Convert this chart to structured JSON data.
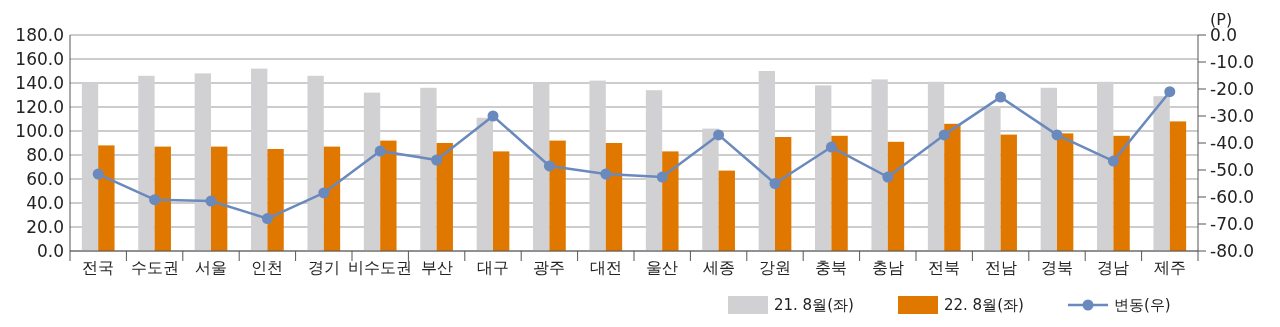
{
  "chart_data": {
    "type": "bar",
    "y2label": "(P)",
    "categories": [
      "전국",
      "수도권",
      "서울",
      "인천",
      "경기",
      "비수도권",
      "부산",
      "대구",
      "광주",
      "대전",
      "울산",
      "세종",
      "강원",
      "충북",
      "충남",
      "전북",
      "전남",
      "경북",
      "경남",
      "제주"
    ],
    "series": [
      {
        "name": "21. 8월(좌)",
        "color": "#d1d1d3",
        "values": [
          140,
          146,
          148,
          152,
          146,
          132,
          136,
          111,
          140,
          142,
          134,
          102,
          150,
          138,
          143,
          141,
          120,
          136,
          141,
          129
        ]
      },
      {
        "name": "22. 8월(좌)",
        "color": "#e07800",
        "values": [
          88,
          87,
          87,
          85,
          87,
          92,
          90,
          83,
          92,
          90,
          83,
          67,
          95,
          96,
          91,
          106,
          97,
          98,
          96,
          108
        ]
      },
      {
        "name": "변동(우)",
        "type": "line",
        "axis": "y2",
        "color": "#6a89bd",
        "marker": "circle",
        "values": [
          -51.5,
          -61,
          -61.5,
          -68,
          -58.5,
          -43,
          -46.3,
          -30,
          -48.5,
          -51.5,
          -52.6,
          -37,
          -55,
          -41.5,
          -52.6,
          -37,
          -23,
          -37,
          -46.7,
          -21
        ]
      }
    ],
    "ylim": [
      0,
      180
    ],
    "yticks": [
      {
        "value": 0,
        "label": "0.0"
      },
      {
        "value": 20,
        "label": "20.0"
      },
      {
        "value": 40,
        "label": "40.0"
      },
      {
        "value": 60,
        "label": "60.0"
      },
      {
        "value": 80,
        "label": "80.0"
      },
      {
        "value": 100,
        "label": "100.0"
      },
      {
        "value": 120,
        "label": "120.0"
      },
      {
        "value": 140,
        "label": "140.0"
      },
      {
        "value": 160,
        "label": "160.0"
      },
      {
        "value": 180,
        "label": "180.0"
      }
    ],
    "y2lim": [
      -80,
      0
    ],
    "y2ticks": [
      {
        "value": 0,
        "label": "0.0"
      },
      {
        "value": -10,
        "label": "-10.0"
      },
      {
        "value": -20,
        "label": "-20.0"
      },
      {
        "value": -30,
        "label": "-30.0"
      },
      {
        "value": -40,
        "label": "-40.0"
      },
      {
        "value": -50,
        "label": "-50.0"
      },
      {
        "value": -60,
        "label": "-60.0"
      },
      {
        "value": -70,
        "label": "-70.0"
      },
      {
        "value": -80,
        "label": "-80.0"
      }
    ],
    "grid": "y",
    "legend": "bottom right"
  }
}
